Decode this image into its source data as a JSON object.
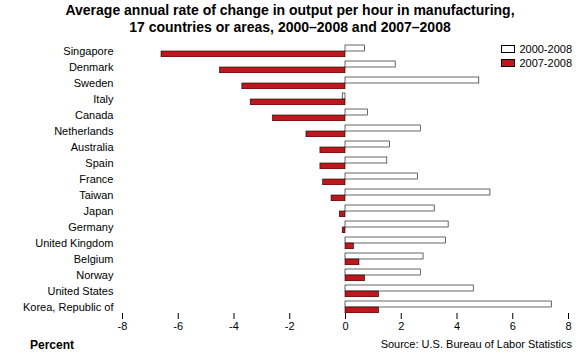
{
  "chart_data": {
    "type": "bar",
    "orientation": "horizontal",
    "title": "Average annual rate of change in output per hour in manufacturing,\n17 countries or areas, 2000–2008 and 2007–2008",
    "x_label": "Percent",
    "source": "Source: U.S. Bureau of Labor Statistics",
    "categories": [
      "Singapore",
      "Denmark",
      "Sweden",
      "Italy",
      "Canada",
      "Netherlands",
      "Australia",
      "Spain",
      "France",
      "Taiwan",
      "Japan",
      "Germany",
      "United Kingdom",
      "Belgium",
      "Norway",
      "United States",
      "Korea, Republic of"
    ],
    "series": [
      {
        "name": "2000-2008",
        "color": "#ffffff",
        "values": [
          0.7,
          1.8,
          4.8,
          -0.1,
          0.8,
          2.7,
          1.6,
          1.5,
          2.6,
          5.2,
          3.2,
          3.7,
          3.6,
          2.8,
          2.7,
          4.6,
          7.4
        ]
      },
      {
        "name": "2007-2008",
        "color": "#c0171b",
        "values": [
          -6.6,
          -4.5,
          -3.7,
          -3.4,
          -2.6,
          -1.4,
          -0.9,
          -0.9,
          -0.8,
          -0.5,
          -0.2,
          -0.1,
          0.3,
          0.5,
          0.7,
          1.2,
          1.2
        ]
      }
    ],
    "xlim": [
      -8,
      8
    ],
    "xticks": [
      -8,
      -6,
      -4,
      -2,
      0,
      2,
      4,
      6,
      8
    ],
    "grid": false,
    "legend": "top-right"
  }
}
